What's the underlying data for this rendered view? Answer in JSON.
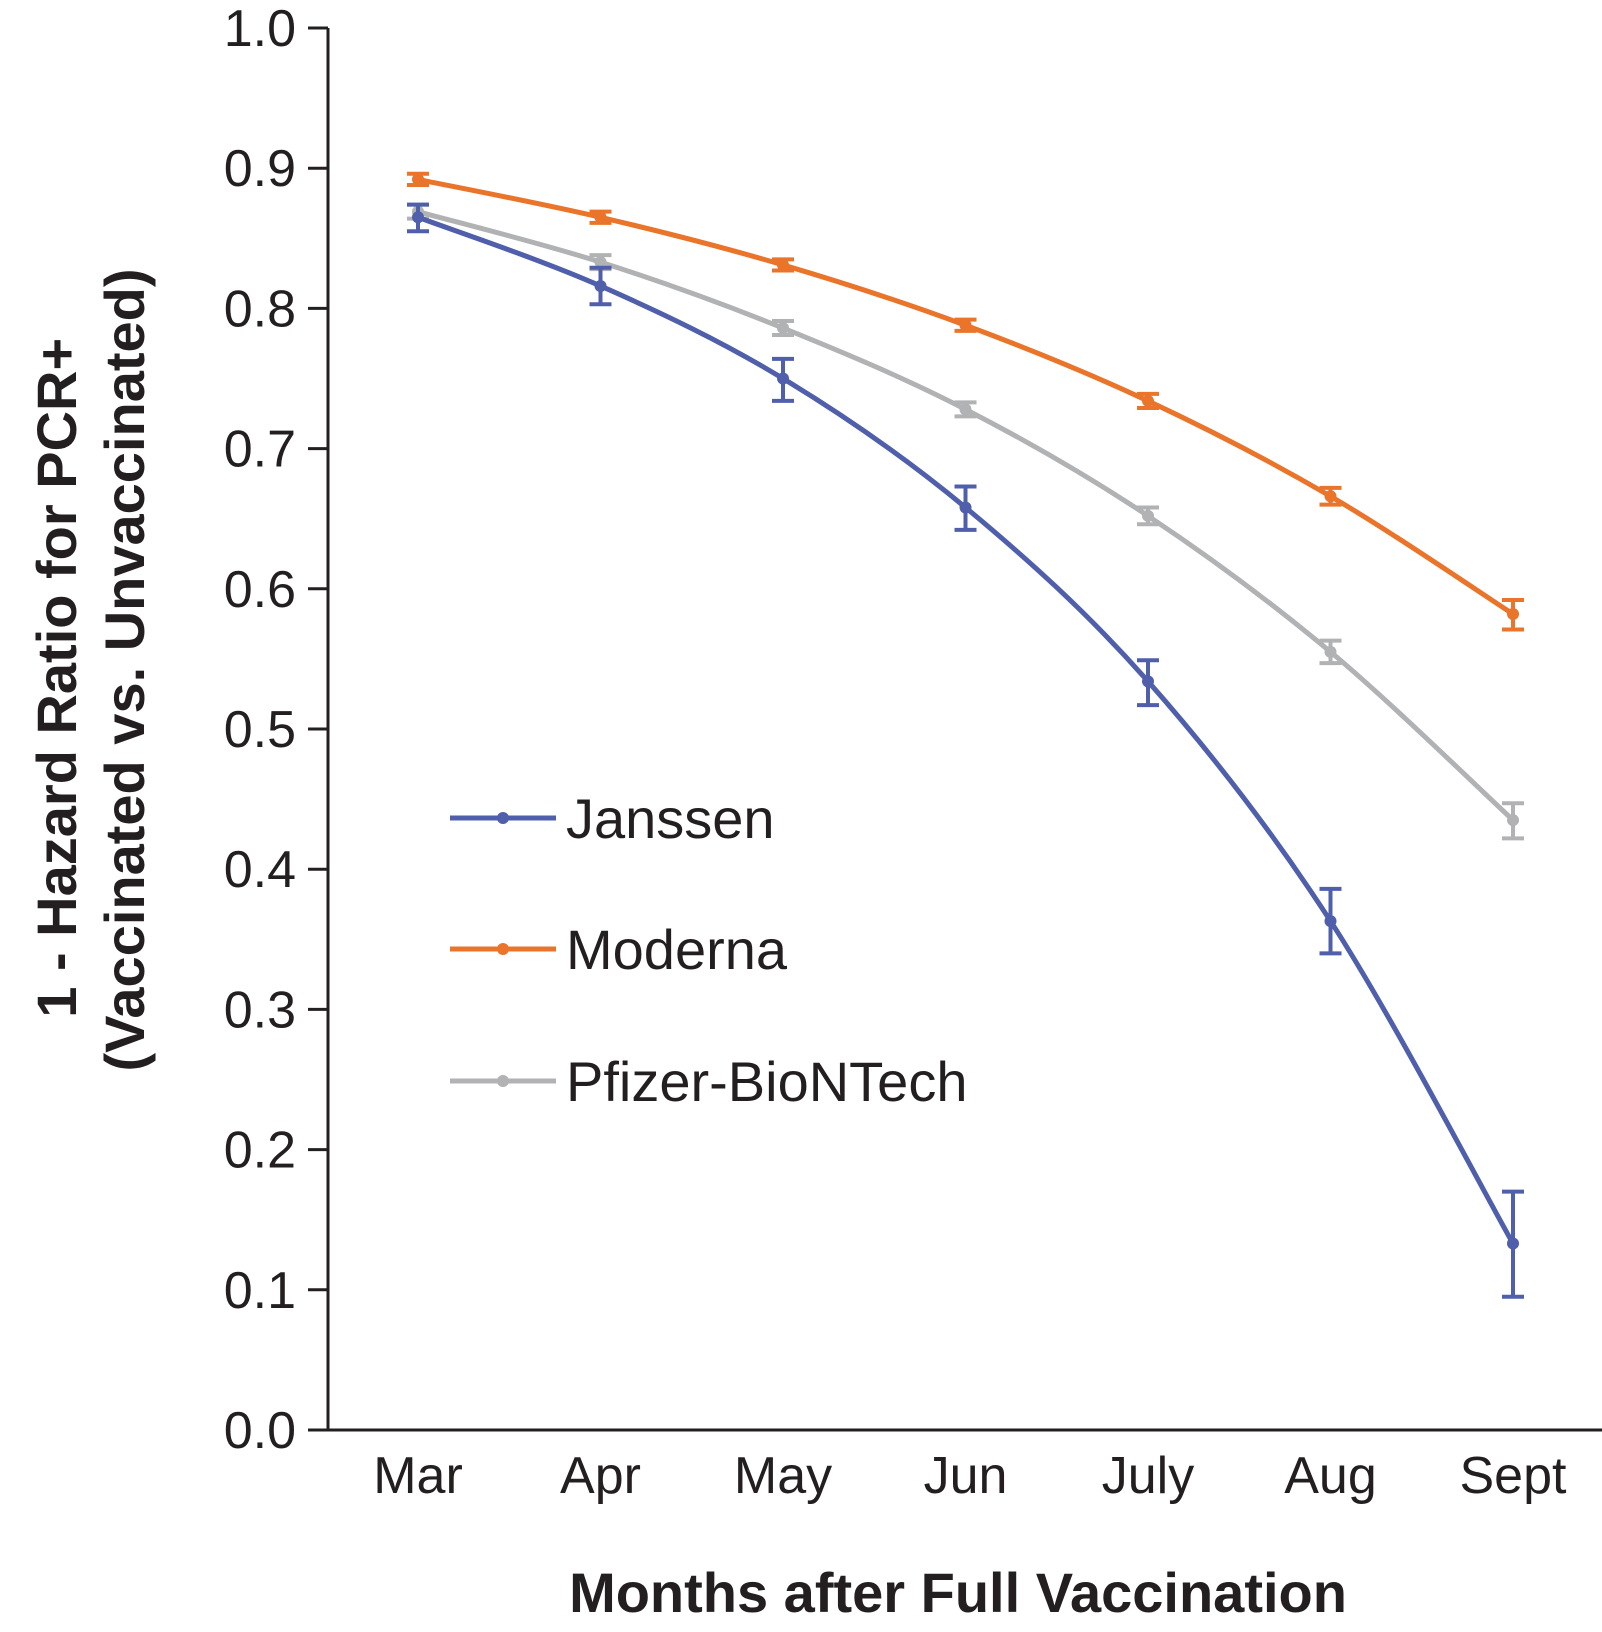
{
  "chart_data": {
    "type": "line",
    "xlabel": "Months after Full Vaccination",
    "ylabel_line1": "1 - Hazard Ratio for PCR+",
    "ylabel_line2": "(Vaccinated vs. Unvaccinated)",
    "categories": [
      "Mar",
      "Apr",
      "May",
      "Jun",
      "July",
      "Aug",
      "Sept"
    ],
    "ylim": [
      0,
      1.0
    ],
    "yticks": [
      "0.0",
      "0.1",
      "0.2",
      "0.3",
      "0.4",
      "0.5",
      "0.6",
      "0.7",
      "0.8",
      "0.9",
      "1.0"
    ],
    "grid": false,
    "legend_position": "center-left",
    "series": [
      {
        "name": "Janssen",
        "color": "#4f5fab",
        "values": [
          0.865,
          0.816,
          0.75,
          0.658,
          0.534,
          0.363,
          0.133
        ],
        "error_low": [
          0.855,
          0.803,
          0.734,
          0.642,
          0.517,
          0.34,
          0.095
        ],
        "error_high": [
          0.874,
          0.829,
          0.764,
          0.673,
          0.549,
          0.386,
          0.17
        ]
      },
      {
        "name": "Moderna",
        "color": "#e9742a",
        "values": [
          0.892,
          0.865,
          0.831,
          0.788,
          0.734,
          0.666,
          0.582
        ],
        "error_low": [
          0.888,
          0.861,
          0.827,
          0.784,
          0.729,
          0.66,
          0.571
        ],
        "error_high": [
          0.896,
          0.869,
          0.835,
          0.792,
          0.739,
          0.672,
          0.592
        ]
      },
      {
        "name": "Pfizer-BioNTech",
        "color": "#b0b2b4",
        "values": [
          0.869,
          0.833,
          0.786,
          0.728,
          0.652,
          0.555,
          0.435
        ],
        "error_low": [
          0.864,
          0.828,
          0.781,
          0.723,
          0.646,
          0.547,
          0.422
        ],
        "error_high": [
          0.874,
          0.838,
          0.791,
          0.733,
          0.658,
          0.563,
          0.447
        ]
      }
    ]
  }
}
